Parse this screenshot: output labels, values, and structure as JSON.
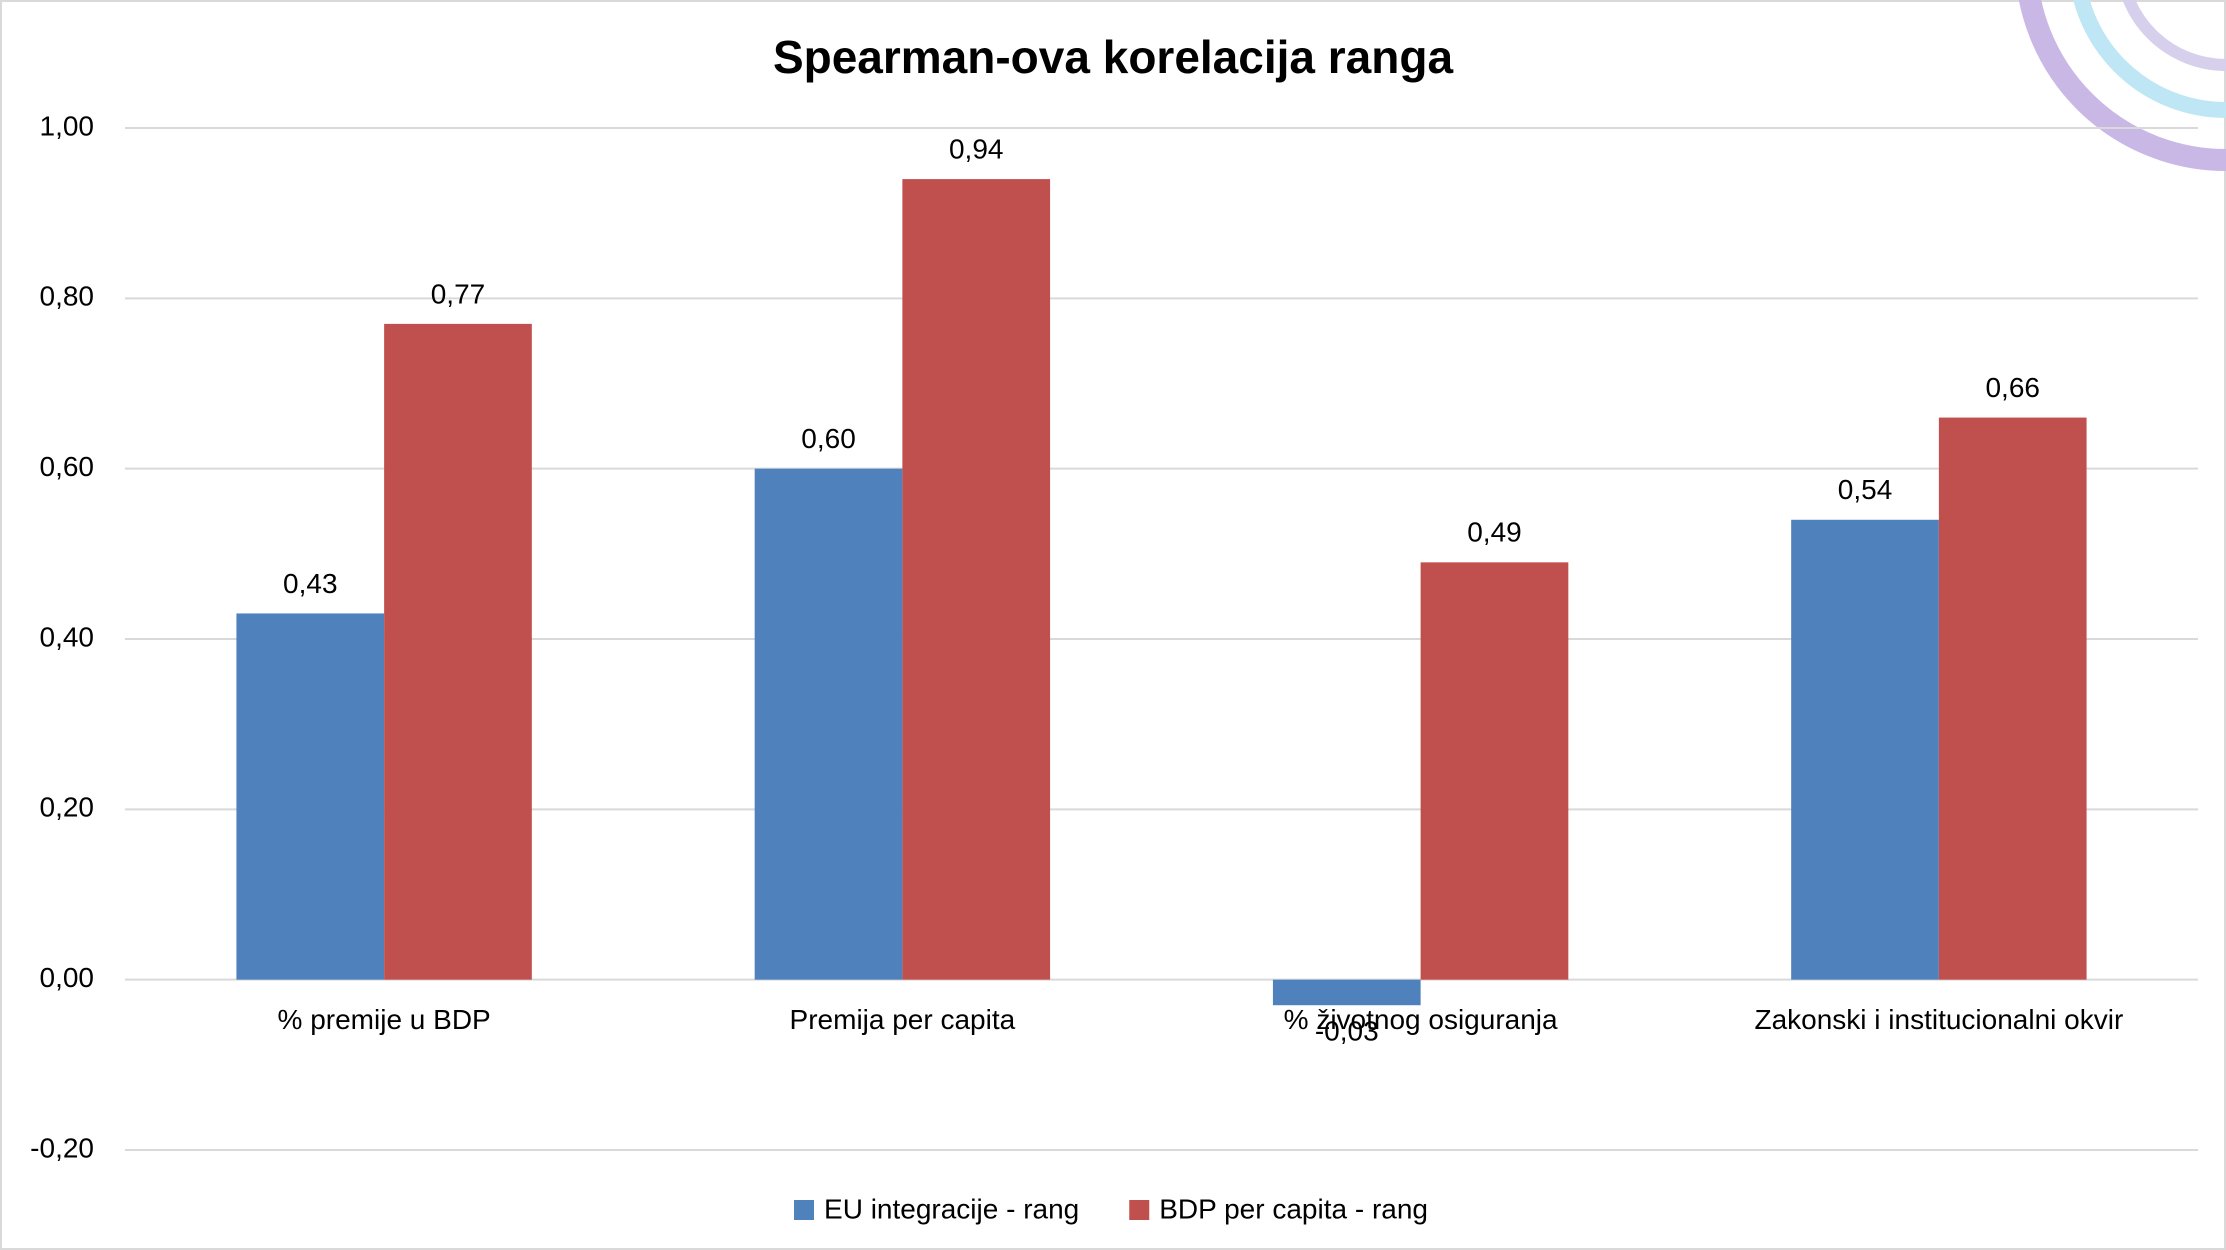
{
  "chart_data": {
    "type": "bar",
    "title": "Spearman-ova korelacija ranga",
    "categories": [
      "% premije u BDP",
      "Premija per capita",
      "% životnog osiguranja",
      "Zakonski i institucionalni okvir"
    ],
    "series": [
      {
        "name": "EU integracije - rang",
        "color": "#4f81bd",
        "values": [
          0.43,
          0.6,
          -0.03,
          0.54
        ],
        "value_labels": [
          "0,43",
          "0,60",
          "-0,03",
          "0,54"
        ]
      },
      {
        "name": "BDP per capita - rang",
        "color": "#c0504d",
        "values": [
          0.77,
          0.94,
          0.49,
          0.66
        ],
        "value_labels": [
          "0,77",
          "0,94",
          "0,49",
          "0,66"
        ]
      }
    ],
    "ylim": [
      -0.2,
      1.0
    ],
    "yticks": [
      {
        "value": -0.2,
        "label": "-0,20"
      },
      {
        "value": 0,
        "label": "0,00"
      },
      {
        "value": 0.2,
        "label": "0,20"
      },
      {
        "value": 0.4,
        "label": "0,40"
      },
      {
        "value": 0.6,
        "label": "0,60"
      },
      {
        "value": 0.8,
        "label": "0,80"
      },
      {
        "value": 1.0,
        "label": "1,00"
      }
    ],
    "grid": true,
    "legend": "bottom"
  }
}
